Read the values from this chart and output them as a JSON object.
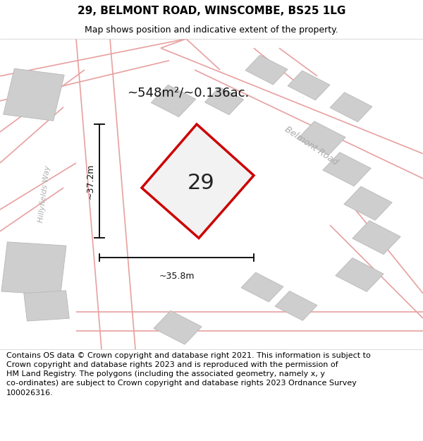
{
  "title": "29, BELMONT ROAD, WINSCOMBE, BS25 1LG",
  "subtitle": "Map shows position and indicative extent of the property.",
  "footer": "Contains OS data © Crown copyright and database right 2021. This information is subject to\nCrown copyright and database rights 2023 and is reproduced with the permission of\nHM Land Registry. The polygons (including the associated geometry, namely x, y\nco-ordinates) are subject to Crown copyright and database rights 2023 Ordnance Survey\n100026316.",
  "area_label": "~548m²/~0.136ac.",
  "property_number": "29",
  "width_label": "~35.8m",
  "height_label": "~37.2m",
  "road_label_1": "Belmont Road",
  "road_label_2": "Hillyfields Way",
  "map_background": "#f5eeee",
  "road_color": "#e8a0a0",
  "building_color": "#cecece",
  "building_edge_color": "#b8b8b8",
  "property_polygon_color": "#cc0000",
  "property_fill_color": "#f2f2f2",
  "title_fontsize": 11,
  "subtitle_fontsize": 9,
  "footer_fontsize": 8,
  "area_label_fontsize": 13,
  "number_fontsize": 22,
  "road_label_fontsize": 9,
  "hillyfields_fontsize": 8
}
